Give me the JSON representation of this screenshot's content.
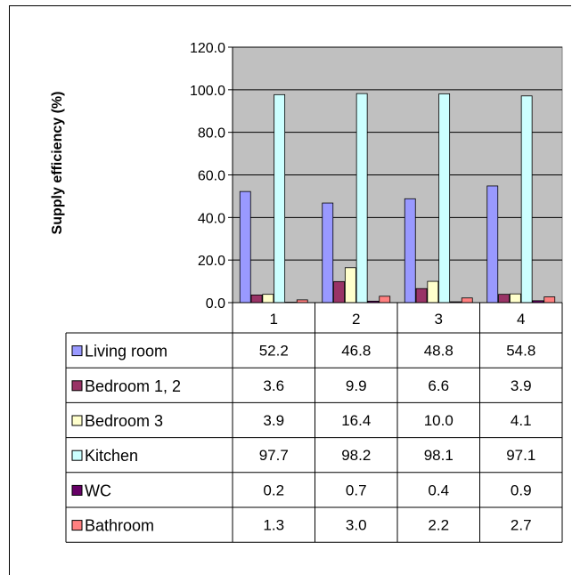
{
  "chart_data": {
    "type": "bar",
    "title": "",
    "xlabel": "",
    "ylabel": "Supply efficiency (%)",
    "categories": [
      "1",
      "2",
      "3",
      "4"
    ],
    "ylim": [
      0,
      120
    ],
    "yticks": [
      "0.0",
      "20.0",
      "40.0",
      "60.0",
      "80.0",
      "100.0",
      "120.0"
    ],
    "grid": true,
    "legend": "data table",
    "plot_background": "#c0c0c0",
    "series": [
      {
        "name": "Living room",
        "color": "#9999ff",
        "values": [
          52.2,
          46.8,
          48.8,
          54.8
        ],
        "labels": [
          "52.2",
          "46.8",
          "48.8",
          "54.8"
        ]
      },
      {
        "name": "Bedroom 1, 2",
        "color": "#993366",
        "values": [
          3.6,
          9.9,
          6.6,
          3.9
        ],
        "labels": [
          "3.6",
          "9.9",
          "6.6",
          "3.9"
        ]
      },
      {
        "name": "Bedroom 3",
        "color": "#ffffcc",
        "values": [
          3.9,
          16.4,
          10.0,
          4.1
        ],
        "labels": [
          "3.9",
          "16.4",
          "10.0",
          "4.1"
        ]
      },
      {
        "name": "Kitchen",
        "color": "#ccffff",
        "values": [
          97.7,
          98.2,
          98.1,
          97.1
        ],
        "labels": [
          "97.7",
          "98.2",
          "98.1",
          "97.1"
        ]
      },
      {
        "name": "WC",
        "color": "#660066",
        "values": [
          0.2,
          0.7,
          0.4,
          0.9
        ],
        "labels": [
          "0.2",
          "0.7",
          "0.4",
          "0.9"
        ]
      },
      {
        "name": "Bathroom",
        "color": "#ff8080",
        "values": [
          1.3,
          3.0,
          2.2,
          2.7
        ],
        "labels": [
          "1.3",
          "3.0",
          "2.2",
          "2.7"
        ]
      }
    ]
  }
}
